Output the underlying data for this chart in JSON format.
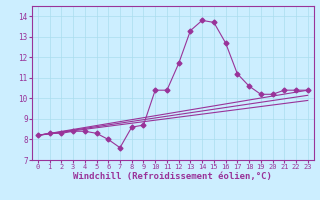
{
  "xlabel": "Windchill (Refroidissement éolien,°C)",
  "ylabel": "",
  "xlim": [
    -0.5,
    23.5
  ],
  "ylim": [
    7,
    14.5
  ],
  "yticks": [
    7,
    8,
    9,
    10,
    11,
    12,
    13,
    14
  ],
  "xticks": [
    0,
    1,
    2,
    3,
    4,
    5,
    6,
    7,
    8,
    9,
    10,
    11,
    12,
    13,
    14,
    15,
    16,
    17,
    18,
    19,
    20,
    21,
    22,
    23
  ],
  "bg_color": "#cceeff",
  "grid_color": "#aaddee",
  "line_color": "#993399",
  "curves": [
    {
      "x": [
        0,
        1,
        2,
        3,
        4,
        5,
        6,
        7,
        8,
        9,
        10,
        11,
        12,
        13,
        14,
        15,
        16,
        17,
        18,
        19,
        20,
        21,
        22,
        23
      ],
      "y": [
        8.2,
        8.3,
        8.3,
        8.4,
        8.4,
        8.3,
        8.0,
        7.6,
        8.6,
        8.7,
        10.4,
        10.4,
        11.7,
        13.3,
        13.8,
        13.7,
        12.7,
        11.2,
        10.6,
        10.2,
        10.2,
        10.4,
        10.4,
        10.4
      ],
      "has_marker": true
    },
    {
      "x": [
        0,
        23
      ],
      "y": [
        8.2,
        10.4
      ],
      "has_marker": false
    },
    {
      "x": [
        0,
        23
      ],
      "y": [
        8.2,
        10.15
      ],
      "has_marker": false
    },
    {
      "x": [
        0,
        23
      ],
      "y": [
        8.2,
        9.9
      ],
      "has_marker": false
    }
  ],
  "marker": "D",
  "markersize": 2.5,
  "linewidth": 0.8,
  "tick_fontsize": 5.0,
  "xlabel_fontsize": 6.5
}
